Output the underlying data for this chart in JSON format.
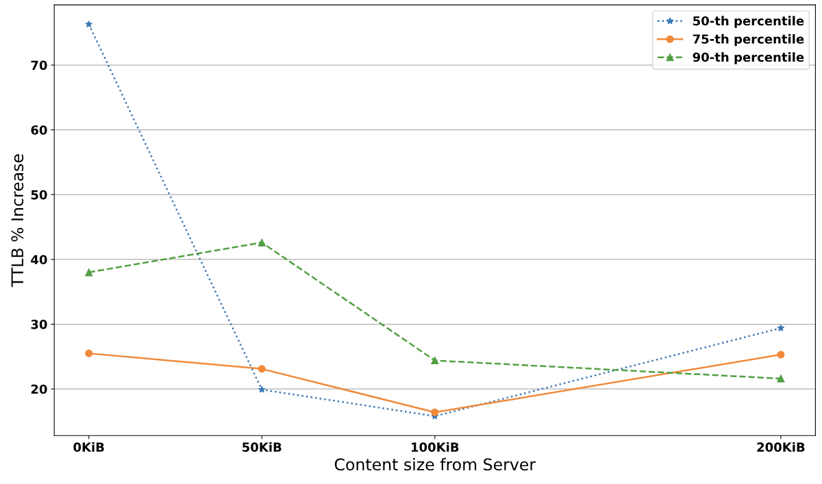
{
  "chart_data": {
    "type": "line",
    "xlabel": "Content size from Server",
    "ylabel": "TTLB % Increase",
    "x": [
      0,
      50,
      100,
      200
    ],
    "xlim": [
      -10,
      210
    ],
    "xticks": [
      {
        "value": 0,
        "label": "0KiB"
      },
      {
        "value": 50,
        "label": "50KiB"
      },
      {
        "value": 100,
        "label": "100KiB"
      },
      {
        "value": 200,
        "label": "200KiB"
      }
    ],
    "ylim": [
      12.8,
      79.3
    ],
    "yticks": [
      20,
      30,
      40,
      50,
      60,
      70
    ],
    "grid": "y",
    "legend": "top right",
    "series": [
      {
        "name": "50-th percentile",
        "color": "#3b78b4",
        "values": [
          76.3,
          19.9,
          15.8,
          29.4
        ],
        "marker": "star",
        "line_style": "dotted"
      },
      {
        "name": "75-th percentile",
        "color": "#f08a3a",
        "values": [
          25.5,
          23.1,
          16.4,
          25.3
        ],
        "marker": "circle",
        "line_style": "solid"
      },
      {
        "name": "90-th percentile",
        "color": "#52a043",
        "values": [
          38.0,
          42.6,
          24.4,
          21.6
        ],
        "marker": "triangle",
        "line_style": "dashed"
      }
    ]
  }
}
